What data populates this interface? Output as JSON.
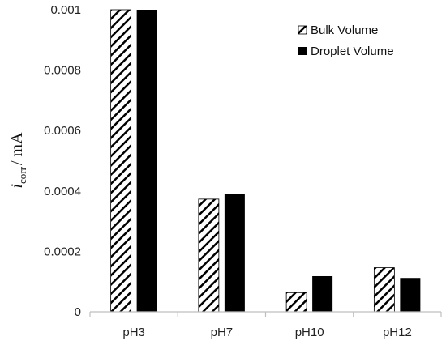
{
  "chart_data": {
    "type": "bar",
    "categories": [
      "pH3",
      "pH7",
      "pH10",
      "pH12"
    ],
    "series": [
      {
        "name": "Bulk Volume",
        "pattern": "diagonal-hatch",
        "color": "#000000",
        "values": [
          0.001,
          0.000373,
          6.35e-05,
          0.000146
        ]
      },
      {
        "name": "Droplet Volume",
        "pattern": "solid",
        "color": "#000000",
        "values": [
          0.001,
          0.000391,
          0.000118,
          0.000112
        ]
      }
    ],
    "title": "",
    "xlabel": "",
    "ylabel": {
      "symbol": "i",
      "subscript": "corr",
      "unit": "/ mA"
    },
    "ylim": [
      0,
      0.001
    ],
    "yticks": [
      "0",
      "0.0002",
      "0.0004",
      "0.0006",
      "0.0008",
      "0.001"
    ],
    "grid": false,
    "legend_position": "top-right"
  }
}
